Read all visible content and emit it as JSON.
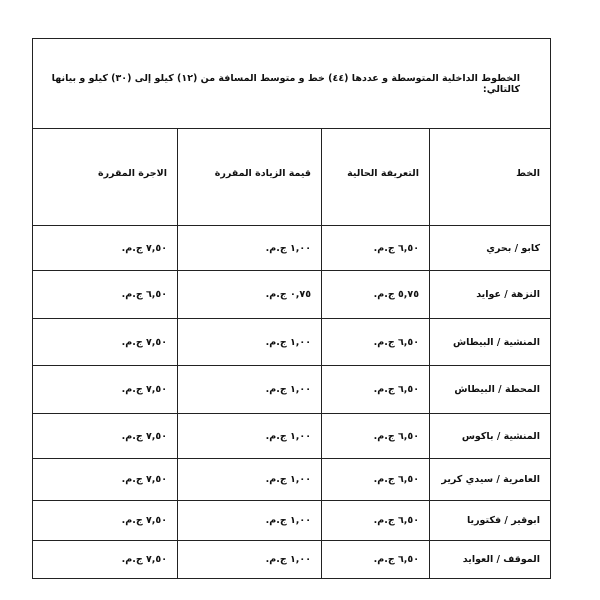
{
  "title": "الخطوط الداخلية المتوسطة و عددها (٤٤) خط و متوسط المسافة من (١٢) كيلو إلى (٣٠) كيلو و بيانها كالتالي:",
  "table": {
    "header": [
      "الخط",
      "التعريفة الحالية",
      "قيمة الزيادة المقررة",
      "الاجرة المقررة"
    ],
    "rows": [
      [
        "كابو / بحري",
        "٦,٥٠ ج.م.",
        "١,٠٠ ج.م.",
        "٧,٥٠ ج.م."
      ],
      [
        "النزهة / عوايد",
        "٥,٧٥ ج.م.",
        "٠,٧٥ ج.م.",
        "٦,٥٠ ج.م."
      ],
      [
        "المنشية / البيطاش",
        "٦,٥٠ ج.م.",
        "١,٠٠ ج.م.",
        "٧,٥٠ ج.م."
      ],
      [
        "المحطة / البيطاش",
        "٦,٥٠ ج.م.",
        "١,٠٠ ج.م.",
        "٧,٥٠ ج.م."
      ],
      [
        "المنشية / باكوس",
        "٦,٥٠ ج.م.",
        "١,٠٠ ج.م.",
        "٧,٥٠ ج.م."
      ],
      [
        "العامرية / سيدي كرير",
        "٦,٥٠ ج.م.",
        "١,٠٠ ج.م.",
        "٧,٥٠ ج.م."
      ],
      [
        "ابوقير / فكتوريا",
        "٦,٥٠ ج.م.",
        "١,٠٠ ج.م.",
        "٧,٥٠ ج.م."
      ],
      [
        "الموقف / العوايد",
        "٦,٥٠ ج.م.",
        "١,٠٠ ج.م.",
        "٧,٥٠ ج.م."
      ]
    ]
  }
}
